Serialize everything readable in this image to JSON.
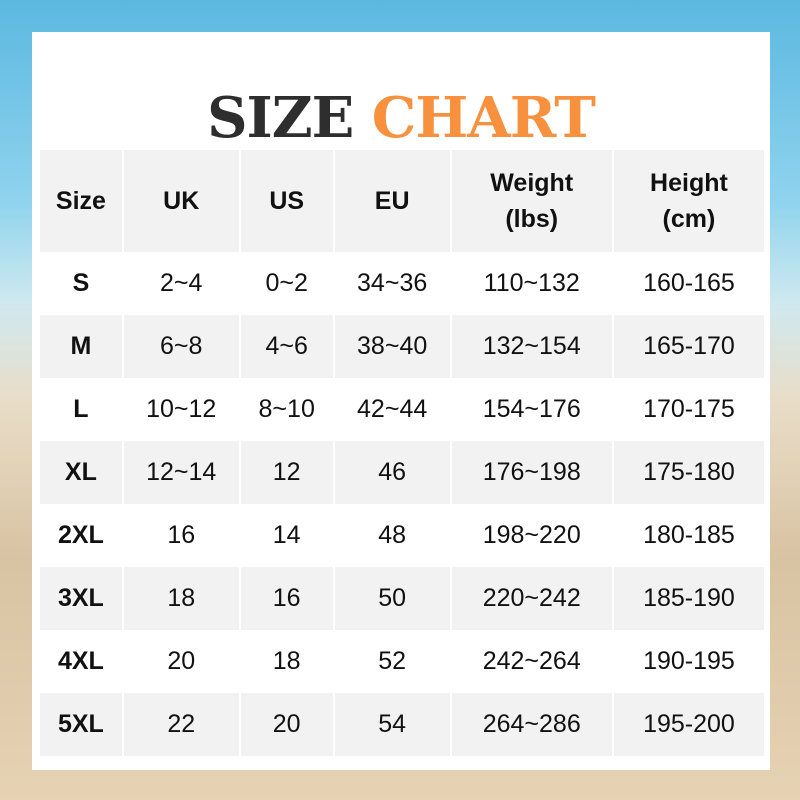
{
  "title": {
    "part1": "SIZE",
    "part2": "CHART"
  },
  "colors": {
    "title_dark": "#2e2e2e",
    "title_accent": "#f7913d",
    "row_alt": "#f2f2f2"
  },
  "table": {
    "headers": [
      [
        "Size"
      ],
      [
        "UK"
      ],
      [
        "US"
      ],
      [
        "EU"
      ],
      [
        "Weight",
        "(lbs)"
      ],
      [
        "Height",
        "(cm)"
      ]
    ],
    "rows": [
      [
        "S",
        "2~4",
        "0~2",
        "34~36",
        "110~132",
        "160-165"
      ],
      [
        "M",
        "6~8",
        "4~6",
        "38~40",
        "132~154",
        "165-170"
      ],
      [
        "L",
        "10~12",
        "8~10",
        "42~44",
        "154~176",
        "170-175"
      ],
      [
        "XL",
        "12~14",
        "12",
        "46",
        "176~198",
        "175-180"
      ],
      [
        "2XL",
        "16",
        "14",
        "48",
        "198~220",
        "180-185"
      ],
      [
        "3XL",
        "18",
        "16",
        "50",
        "220~242",
        "185-190"
      ],
      [
        "4XL",
        "20",
        "18",
        "52",
        "242~264",
        "190-195"
      ],
      [
        "5XL",
        "22",
        "20",
        "54",
        "264~286",
        "195-200"
      ]
    ]
  }
}
